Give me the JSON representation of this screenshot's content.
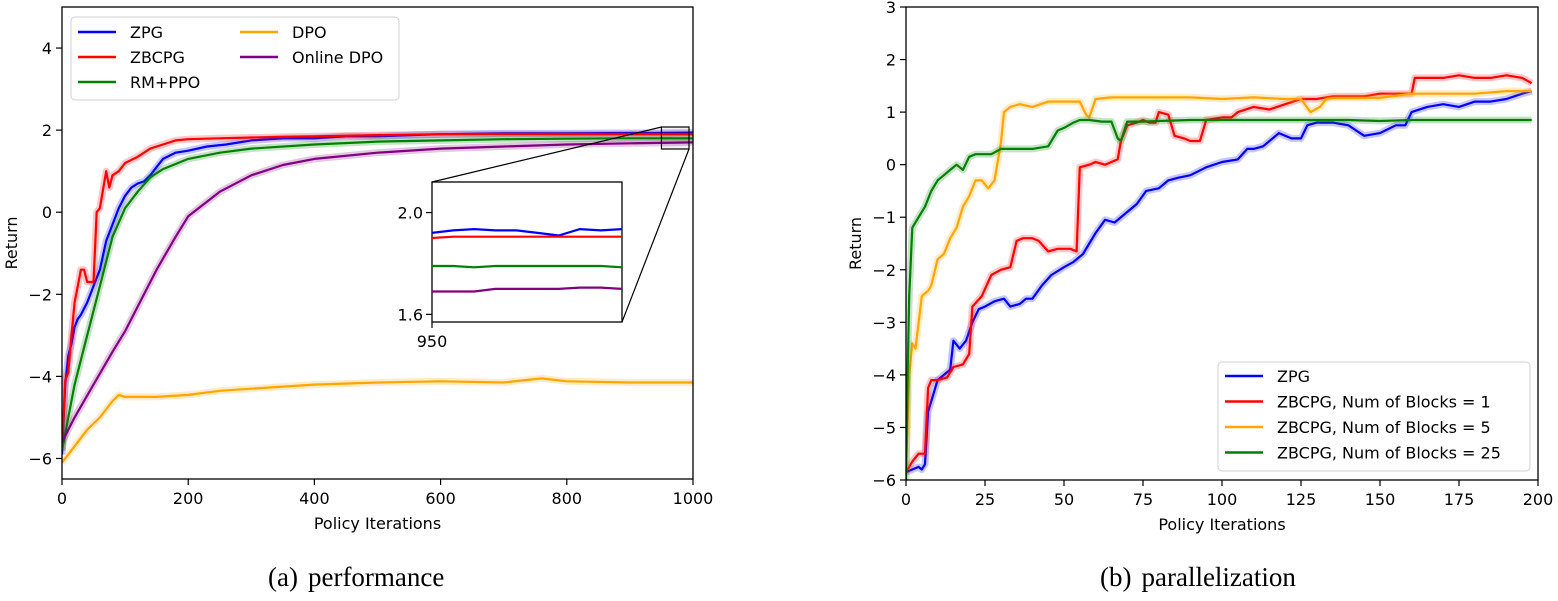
{
  "chart_data": [
    {
      "id": "a",
      "type": "line",
      "title": "",
      "caption": {
        "tag": "(a)",
        "text": "performance"
      },
      "xlabel": "Policy Iterations",
      "ylabel": "Return",
      "xlim": [
        0,
        1000
      ],
      "ylim": [
        -6.5,
        5.0
      ],
      "xticks": [
        0,
        200,
        400,
        600,
        800,
        1000
      ],
      "yticks": [
        -6,
        -4,
        -2,
        0,
        2,
        4
      ],
      "grid": false,
      "legend": {
        "position": "upper left",
        "columns": 2
      },
      "series": [
        {
          "name": "ZPG",
          "color": "#0000ff",
          "x": [
            0,
            5,
            10,
            15,
            20,
            25,
            30,
            40,
            50,
            60,
            70,
            80,
            90,
            100,
            110,
            120,
            130,
            140,
            150,
            160,
            180,
            200,
            230,
            260,
            300,
            350,
            400,
            450,
            500,
            600,
            700,
            800,
            900,
            950,
            1000
          ],
          "y": [
            -5.9,
            -4.2,
            -3.5,
            -3.2,
            -2.8,
            -2.6,
            -2.5,
            -2.2,
            -1.8,
            -1.4,
            -0.7,
            -0.3,
            0.1,
            0.4,
            0.6,
            0.7,
            0.75,
            0.9,
            1.1,
            1.3,
            1.45,
            1.5,
            1.6,
            1.65,
            1.75,
            1.8,
            1.8,
            1.85,
            1.85,
            1.9,
            1.92,
            1.92,
            1.93,
            1.93,
            1.94
          ]
        },
        {
          "name": "ZBCPG",
          "color": "#ff0000",
          "x": [
            0,
            5,
            10,
            15,
            20,
            25,
            30,
            35,
            40,
            50,
            55,
            60,
            70,
            75,
            80,
            90,
            100,
            120,
            140,
            160,
            180,
            200,
            250,
            300,
            400,
            500,
            600,
            800,
            1000
          ],
          "y": [
            -5.8,
            -4.1,
            -3.9,
            -3.0,
            -2.2,
            -1.8,
            -1.4,
            -1.4,
            -1.7,
            -1.7,
            0.0,
            0.1,
            1.0,
            0.6,
            0.9,
            1.0,
            1.2,
            1.35,
            1.55,
            1.65,
            1.75,
            1.78,
            1.8,
            1.82,
            1.85,
            1.88,
            1.9,
            1.9,
            1.9
          ]
        },
        {
          "name": "RM+PPO",
          "color": "#008000",
          "x": [
            0,
            10,
            20,
            40,
            60,
            80,
            100,
            120,
            140,
            160,
            200,
            250,
            300,
            400,
            500,
            600,
            700,
            800,
            900,
            1000
          ],
          "y": [
            -5.8,
            -5.0,
            -4.2,
            -3.0,
            -1.8,
            -0.6,
            0.1,
            0.5,
            0.85,
            1.05,
            1.3,
            1.45,
            1.55,
            1.65,
            1.72,
            1.75,
            1.78,
            1.79,
            1.8,
            1.8
          ]
        },
        {
          "name": "DPO",
          "color": "#ffa500",
          "x": [
            0,
            20,
            40,
            60,
            80,
            90,
            100,
            150,
            200,
            250,
            300,
            400,
            500,
            600,
            700,
            760,
            800,
            900,
            1000
          ],
          "y": [
            -6.1,
            -5.7,
            -5.3,
            -5.0,
            -4.6,
            -4.45,
            -4.5,
            -4.5,
            -4.45,
            -4.35,
            -4.3,
            -4.2,
            -4.15,
            -4.12,
            -4.15,
            -4.05,
            -4.12,
            -4.15,
            -4.15
          ]
        },
        {
          "name": "Online DPO",
          "color": "#800080",
          "x": [
            0,
            20,
            50,
            80,
            100,
            130,
            150,
            180,
            200,
            250,
            300,
            350,
            400,
            500,
            600,
            700,
            800,
            900,
            1000
          ],
          "y": [
            -5.6,
            -5.0,
            -4.2,
            -3.4,
            -2.9,
            -2.0,
            -1.4,
            -0.6,
            -0.1,
            0.5,
            0.9,
            1.15,
            1.3,
            1.45,
            1.55,
            1.6,
            1.65,
            1.68,
            1.7
          ]
        }
      ],
      "inset": {
        "xlim": [
          950,
          1000
        ],
        "ylim": [
          1.57,
          2.12
        ],
        "xticks": [
          950
        ],
        "yticks": [
          1.6,
          2.0
        ],
        "ytick_labels": [
          "1.6",
          "2.0"
        ],
        "series_y": {
          "ZPG": [
            1.92,
            1.93,
            1.935,
            1.93,
            1.93,
            1.92,
            1.91,
            1.935,
            1.93,
            1.935
          ],
          "ZBCPG": [
            1.9,
            1.905,
            1.905,
            1.905,
            1.905,
            1.905,
            1.905,
            1.905,
            1.905,
            1.905
          ],
          "RM+PPO": [
            1.79,
            1.79,
            1.785,
            1.79,
            1.79,
            1.79,
            1.79,
            1.79,
            1.79,
            1.785
          ],
          "Online DPO": [
            1.69,
            1.69,
            1.69,
            1.7,
            1.7,
            1.7,
            1.7,
            1.705,
            1.705,
            1.7
          ]
        }
      }
    },
    {
      "id": "b",
      "type": "line",
      "title": "",
      "caption": {
        "tag": "(b)",
        "text": "parallelization"
      },
      "xlabel": "Policy Iterations",
      "ylabel": "Return",
      "xlim": [
        0,
        200
      ],
      "ylim": [
        -6,
        3
      ],
      "xticks": [
        0,
        25,
        50,
        75,
        100,
        125,
        150,
        175,
        200
      ],
      "yticks": [
        -6,
        -5,
        -4,
        -3,
        -2,
        -1,
        0,
        1,
        2,
        3
      ],
      "grid": false,
      "legend": {
        "position": "lower right",
        "columns": 1
      },
      "series": [
        {
          "name": "ZPG",
          "color": "#0000ff",
          "x": [
            0,
            2,
            4,
            5,
            6,
            7,
            8,
            10,
            12,
            14,
            15,
            17,
            19,
            21,
            23,
            25,
            28,
            31,
            33,
            36,
            38,
            40,
            43,
            46,
            50,
            53,
            56,
            60,
            63,
            66,
            70,
            73,
            76,
            80,
            83,
            86,
            90,
            95,
            100,
            105,
            108,
            110,
            113,
            118,
            122,
            125,
            127,
            130,
            135,
            140,
            145,
            150,
            155,
            158,
            160,
            165,
            170,
            175,
            180,
            185,
            190,
            195,
            198
          ],
          "y": [
            -5.85,
            -5.8,
            -5.75,
            -5.8,
            -5.7,
            -4.7,
            -4.5,
            -4.1,
            -4.0,
            -3.9,
            -3.35,
            -3.5,
            -3.35,
            -3.0,
            -2.75,
            -2.7,
            -2.6,
            -2.55,
            -2.7,
            -2.65,
            -2.55,
            -2.55,
            -2.3,
            -2.1,
            -1.95,
            -1.85,
            -1.7,
            -1.3,
            -1.05,
            -1.1,
            -0.9,
            -0.75,
            -0.5,
            -0.45,
            -0.3,
            -0.25,
            -0.2,
            -0.05,
            0.05,
            0.1,
            0.3,
            0.3,
            0.35,
            0.6,
            0.5,
            0.5,
            0.75,
            0.8,
            0.8,
            0.75,
            0.55,
            0.6,
            0.75,
            0.75,
            1.0,
            1.1,
            1.15,
            1.1,
            1.2,
            1.2,
            1.25,
            1.35,
            1.4
          ]
        },
        {
          "name": "ZBCPG, Num of Blocks = 1",
          "color": "#ff0000",
          "x": [
            0,
            2,
            4,
            6,
            7,
            8,
            10,
            13,
            15,
            18,
            20,
            21,
            24,
            27,
            30,
            33,
            35,
            37,
            40,
            42,
            45,
            48,
            52,
            54,
            55,
            58,
            60,
            63,
            65,
            67,
            68,
            70,
            73,
            75,
            77,
            79,
            80,
            83,
            85,
            88,
            90,
            93,
            95,
            100,
            103,
            105,
            110,
            115,
            120,
            125,
            130,
            135,
            140,
            145,
            150,
            155,
            160,
            161,
            165,
            170,
            175,
            180,
            185,
            190,
            195,
            198
          ],
          "y": [
            -5.85,
            -5.65,
            -5.5,
            -5.5,
            -4.25,
            -4.1,
            -4.1,
            -4.05,
            -3.85,
            -3.8,
            -3.6,
            -2.7,
            -2.5,
            -2.1,
            -2.0,
            -1.95,
            -1.45,
            -1.4,
            -1.4,
            -1.45,
            -1.65,
            -1.6,
            -1.6,
            -1.65,
            -0.05,
            0.0,
            0.05,
            0.0,
            0.05,
            0.1,
            0.45,
            0.75,
            0.8,
            0.85,
            0.8,
            0.8,
            1.0,
            0.95,
            0.55,
            0.5,
            0.45,
            0.45,
            0.85,
            0.9,
            0.9,
            1.0,
            1.1,
            1.05,
            1.15,
            1.25,
            1.25,
            1.3,
            1.3,
            1.3,
            1.35,
            1.35,
            1.35,
            1.65,
            1.65,
            1.65,
            1.7,
            1.65,
            1.65,
            1.7,
            1.65,
            1.55
          ]
        },
        {
          "name": "ZBCPG, Num of Blocks = 5",
          "color": "#ffa500",
          "x": [
            0,
            1,
            2,
            3,
            5,
            7,
            8,
            10,
            12,
            14,
            16,
            18,
            20,
            22,
            24,
            26,
            28,
            30,
            31,
            33,
            36,
            40,
            45,
            50,
            55,
            57,
            58,
            60,
            65,
            70,
            80,
            90,
            100,
            110,
            120,
            125,
            128,
            131,
            133,
            135,
            140,
            150,
            160,
            170,
            180,
            190,
            198
          ],
          "y": [
            -5.8,
            -4.0,
            -3.4,
            -3.5,
            -2.5,
            -2.4,
            -2.3,
            -1.8,
            -1.7,
            -1.4,
            -1.2,
            -0.8,
            -0.6,
            -0.3,
            -0.3,
            -0.45,
            -0.3,
            0.4,
            1.0,
            1.1,
            1.15,
            1.1,
            1.2,
            1.2,
            1.2,
            0.95,
            0.9,
            1.25,
            1.28,
            1.28,
            1.28,
            1.28,
            1.25,
            1.28,
            1.25,
            1.25,
            1.0,
            1.1,
            1.25,
            1.27,
            1.27,
            1.27,
            1.35,
            1.35,
            1.35,
            1.4,
            1.4
          ]
        },
        {
          "name": "ZBCPG, Num of Blocks = 25",
          "color": "#008000",
          "x": [
            0,
            0.5,
            1,
            2,
            4,
            6,
            8,
            10,
            12,
            14,
            16,
            18,
            20,
            22,
            24,
            27,
            30,
            35,
            40,
            45,
            48,
            50,
            53,
            55,
            58,
            62,
            65,
            67,
            68,
            70,
            72,
            75,
            80,
            90,
            100,
            110,
            120,
            130,
            140,
            150,
            160,
            170,
            180,
            190,
            198
          ],
          "y": [
            -6.0,
            -4.0,
            -2.5,
            -1.2,
            -1.0,
            -0.8,
            -0.5,
            -0.3,
            -0.2,
            -0.1,
            0.0,
            -0.1,
            0.15,
            0.2,
            0.2,
            0.2,
            0.3,
            0.3,
            0.3,
            0.35,
            0.65,
            0.7,
            0.8,
            0.85,
            0.85,
            0.82,
            0.82,
            0.5,
            0.45,
            0.82,
            0.82,
            0.82,
            0.83,
            0.85,
            0.85,
            0.85,
            0.85,
            0.85,
            0.85,
            0.83,
            0.85,
            0.85,
            0.85,
            0.85,
            0.85
          ]
        }
      ]
    }
  ]
}
